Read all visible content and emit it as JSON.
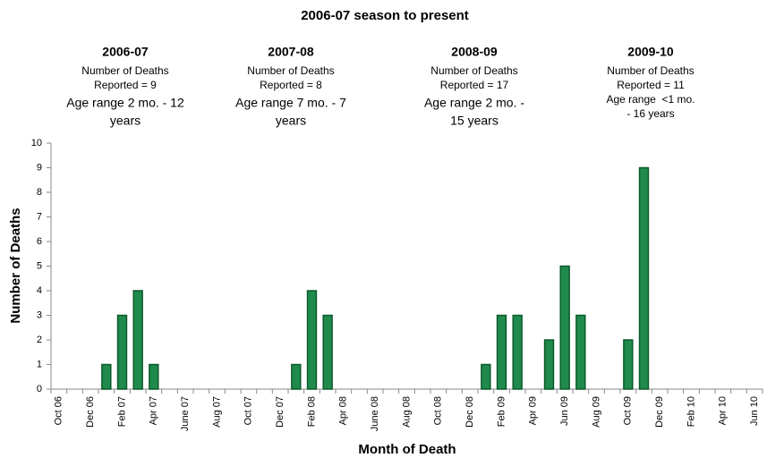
{
  "chart_data": {
    "type": "bar",
    "title": "2006-07 season to present",
    "x_label": "Month of Death",
    "y_label": "Number of Deaths",
    "categories": [
      "Oct 06",
      null,
      "Dec 06",
      null,
      "Feb 07",
      null,
      "Apr 07",
      null,
      "June 07",
      null,
      "Aug 07",
      null,
      "Oct 07",
      null,
      "Dec 07",
      null,
      "Feb 08",
      null,
      "Apr 08",
      null,
      "June 08",
      null,
      "Aug 08",
      null,
      "Oct 08",
      null,
      "Dec 08",
      null,
      "Feb 09",
      null,
      "Apr 09",
      null,
      "Jun 09",
      null,
      "Aug 09",
      null,
      "Oct 09",
      null,
      "Dec 09",
      null,
      "Feb 10",
      null,
      "Apr 10",
      null,
      "Jun 10"
    ],
    "values": [
      0,
      0,
      0,
      1,
      3,
      4,
      1,
      0,
      0,
      0,
      0,
      0,
      0,
      0,
      0,
      1,
      4,
      3,
      0,
      0,
      0,
      0,
      0,
      0,
      0,
      0,
      0,
      1,
      3,
      3,
      0,
      2,
      5,
      3,
      0,
      0,
      2,
      9,
      0,
      0,
      0,
      0,
      0,
      0,
      0
    ],
    "color": "#1f8a4c",
    "ylim": [
      0,
      10
    ],
    "yticks": [
      0,
      1,
      2,
      3,
      4,
      5,
      6,
      7,
      8,
      9,
      10
    ],
    "grid": false,
    "annotations": [
      {
        "title": "2006-07",
        "lines": [
          "Number of Deaths",
          "Reported = 9",
          "Age range 2 mo. - 12",
          "years"
        ]
      },
      {
        "title": "2007-08",
        "lines": [
          "Number of Deaths",
          "Reported = 8",
          "Age range 7 mo. - 7",
          "years"
        ]
      },
      {
        "title": "2008-09",
        "lines": [
          "Number of Deaths",
          "Reported = 17",
          "Age range 2 mo. -",
          "15 years"
        ]
      },
      {
        "title": "2009-10",
        "lines": [
          "Number of Deaths",
          "Reported = 11",
          "Age range  <1 mo.",
          "- 16 years"
        ]
      }
    ]
  }
}
